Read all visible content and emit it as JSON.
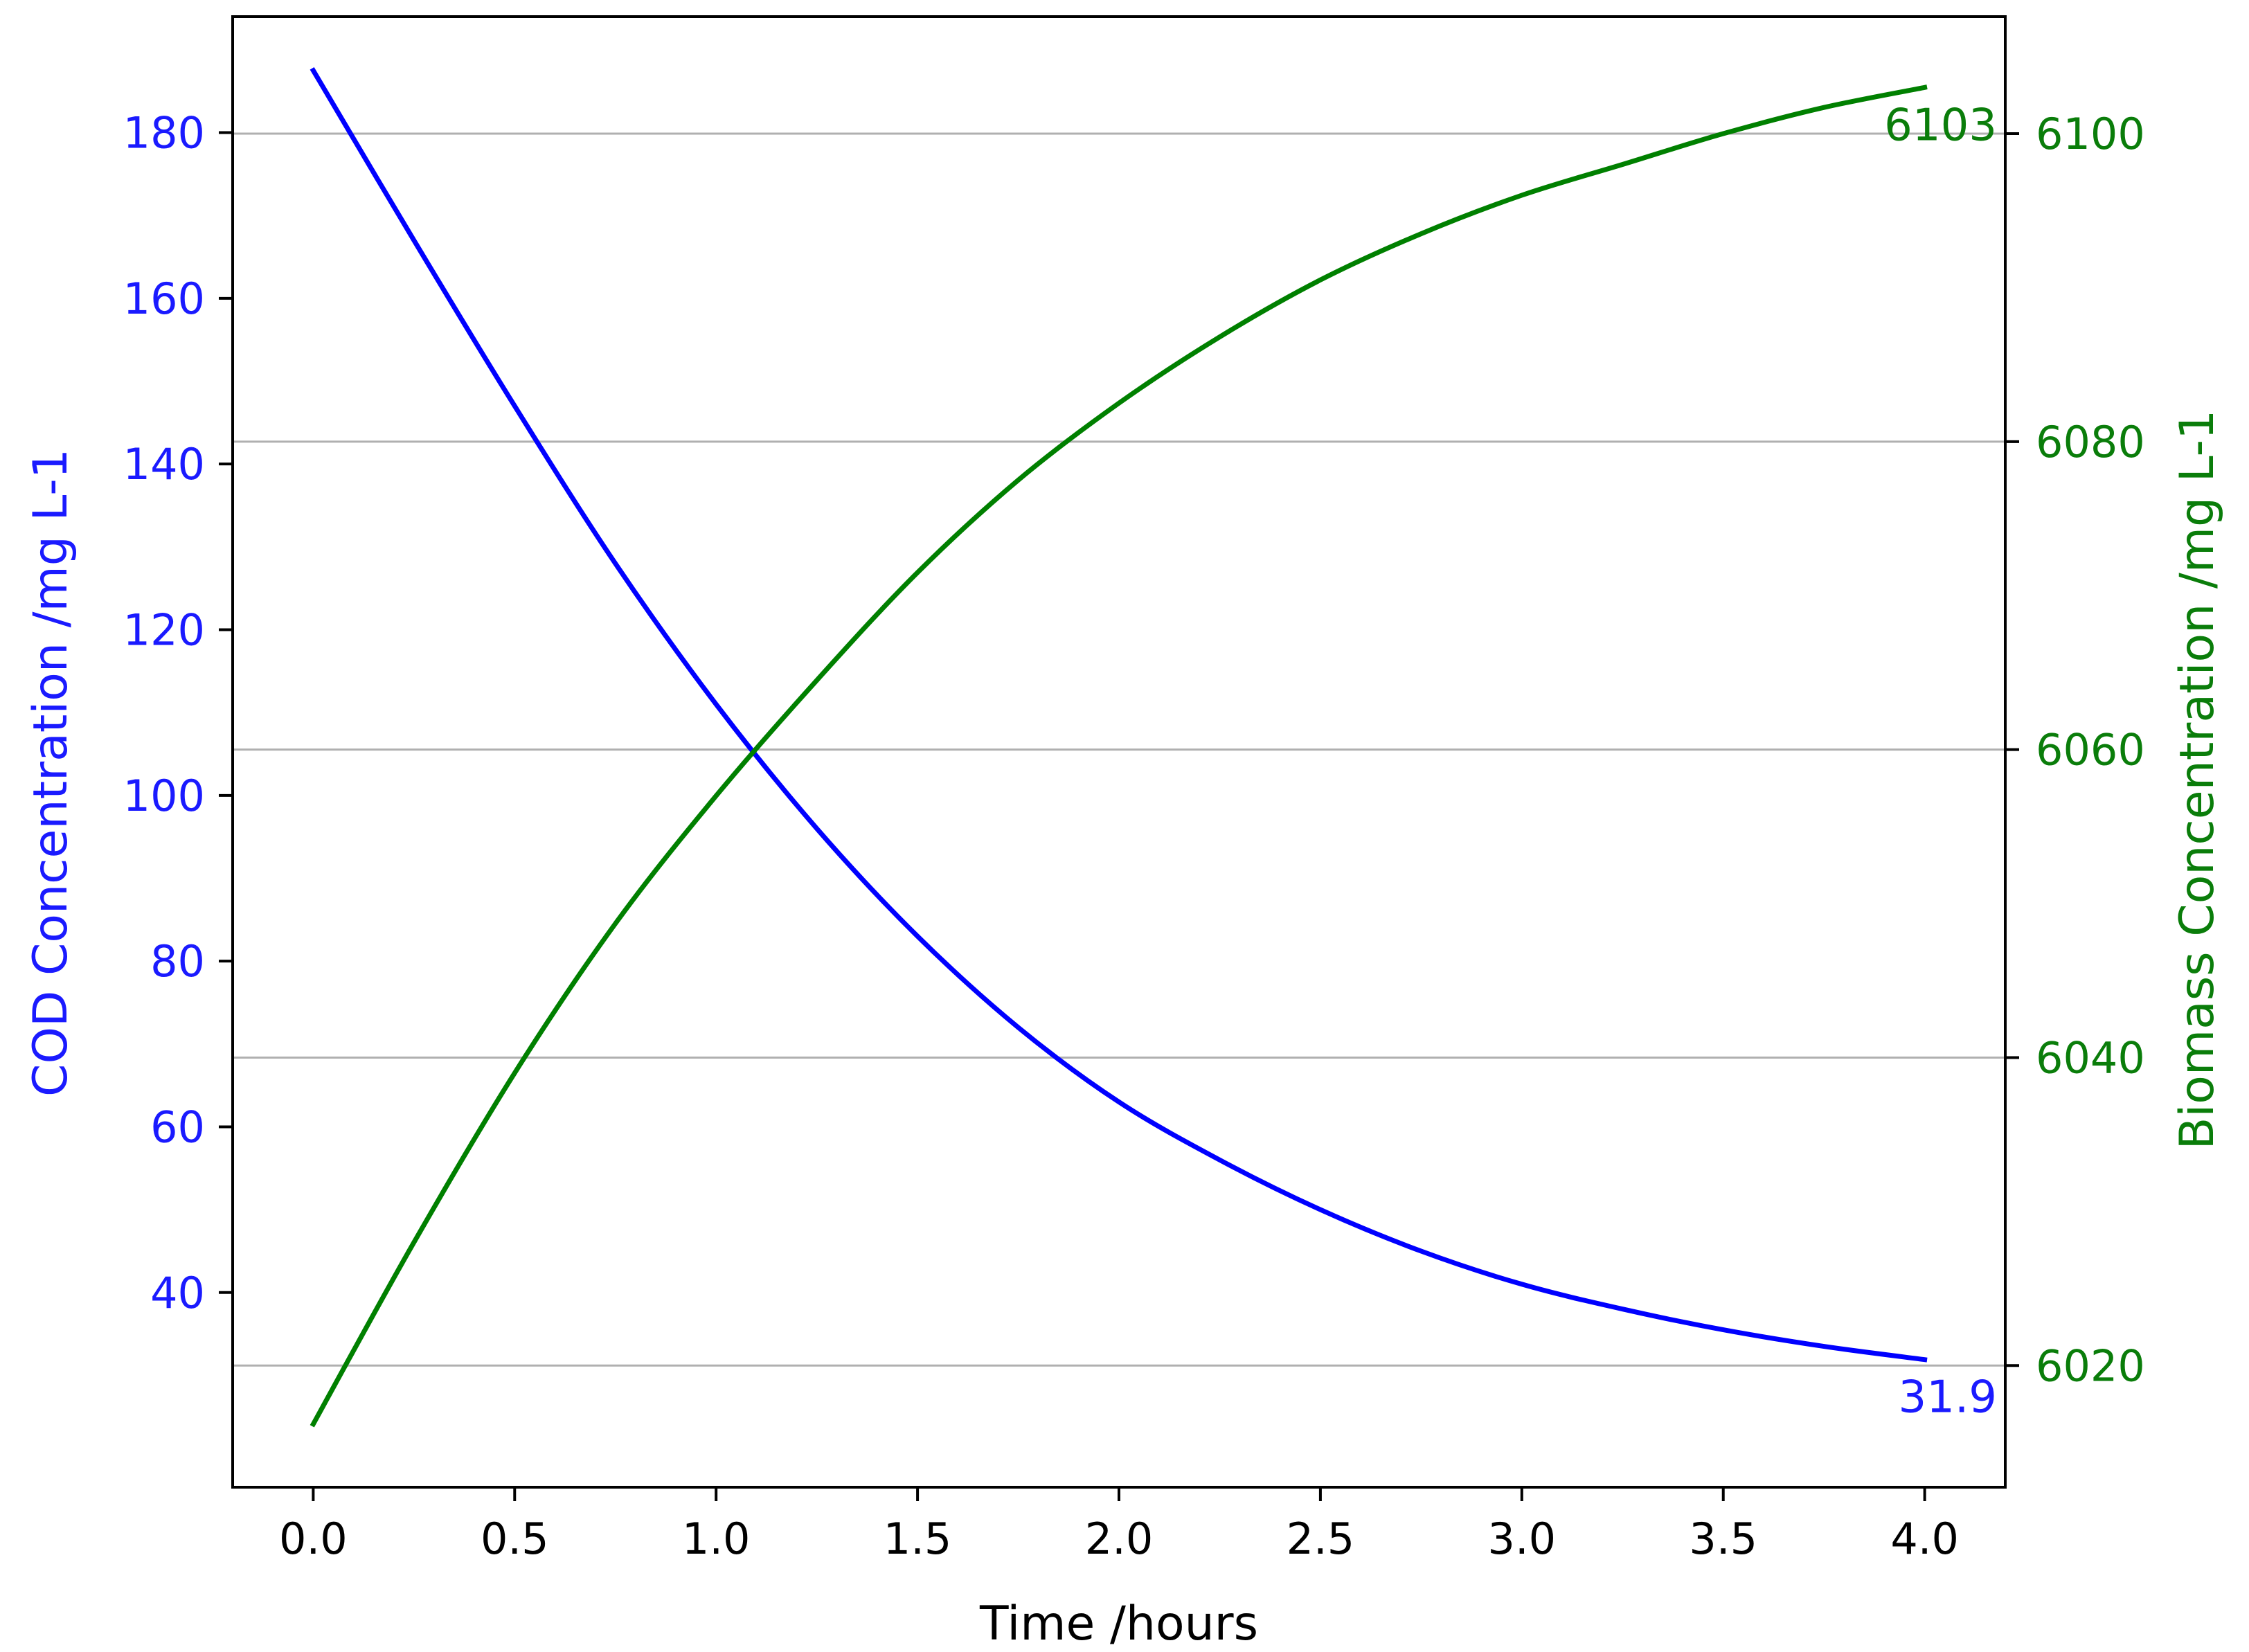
{
  "chart_data": {
    "type": "line",
    "title": "",
    "xlabel": "Time /hours",
    "ylabel_left": "COD Concentration /mg L-1",
    "ylabel_right": "Biomass Concentration /mg L-1",
    "xlim": [
      -0.2,
      4.2
    ],
    "ylim_left": [
      16.5,
      194
    ],
    "ylim_right": [
      6012.1,
      6107.6
    ],
    "x_ticks": [
      "0.0",
      "0.5",
      "1.0",
      "1.5",
      "2.0",
      "2.5",
      "3.0",
      "3.5",
      "4.0"
    ],
    "y_left_ticks": [
      "40",
      "60",
      "80",
      "100",
      "120",
      "140",
      "160",
      "180"
    ],
    "y_right_ticks": [
      "6020",
      "6040",
      "6060",
      "6080",
      "6100"
    ],
    "grid": "horizontal lines at right-axis ticks",
    "colors": {
      "left_axis": "#1a1aff",
      "right_axis": "#0a7d0a",
      "cod_line": "#0000ff",
      "biomass_line": "#008000",
      "grid": "#b0b0b0"
    },
    "series": [
      {
        "axis": "left",
        "x": [
          0,
          0.25,
          0.5,
          0.75,
          1.0,
          1.25,
          1.5,
          1.75,
          2.0,
          2.25,
          2.5,
          2.75,
          3.0,
          3.25,
          3.5,
          3.75,
          4.0
        ],
        "values": [
          187.5,
          167.0,
          147.0,
          128.0,
          111.0,
          96.0,
          83.0,
          72.0,
          63.0,
          56.0,
          50.0,
          45.0,
          41.0,
          38.0,
          35.5,
          33.5,
          31.9
        ]
      },
      {
        "axis": "right",
        "x": [
          0,
          0.25,
          0.5,
          0.75,
          1.0,
          1.25,
          1.5,
          1.75,
          2.0,
          2.25,
          2.5,
          2.75,
          3.0,
          3.25,
          3.5,
          3.75,
          4.0
        ],
        "values": [
          6016.2,
          6028.0,
          6039.0,
          6048.7,
          6057.0,
          6064.5,
          6071.5,
          6077.5,
          6082.5,
          6086.8,
          6090.5,
          6093.5,
          6096.0,
          6098.0,
          6100.0,
          6101.7,
          6103.0
        ]
      }
    ],
    "annotations": [
      {
        "text": "31.9",
        "series": 0,
        "position": "end"
      },
      {
        "text": "6103",
        "series": 1,
        "position": "end"
      }
    ]
  }
}
